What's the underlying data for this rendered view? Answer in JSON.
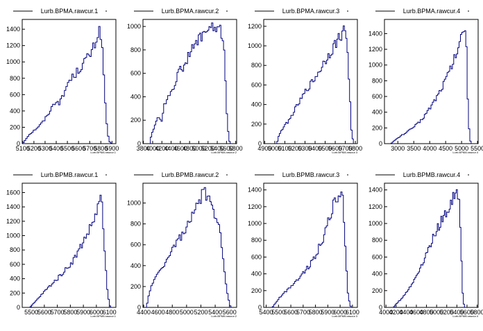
{
  "style": {
    "background": "#ffffff",
    "line_color": "#000080",
    "frame_color": "#000000"
  },
  "chart_data": [
    {
      "type": "histogram",
      "title": "Lurb.BPMA.rawcur.1",
      "xlabel": "Lurb.BPMA.rawcur.1",
      "x_range": [
        5095,
        5935
      ],
      "x_ticks": [
        5100,
        5200,
        5300,
        5400,
        5500,
        5600,
        5700,
        5800,
        5900
      ],
      "x_tick_labels": [
        "5100",
        "5200",
        "5300",
        "5400",
        "5500",
        "5600",
        "5700",
        "5800",
        "5900"
      ],
      "ylim": [
        0,
        1520
      ],
      "y_ticks": [
        0,
        200,
        400,
        600,
        800,
        1000,
        1200,
        1400
      ],
      "points": [
        [
          5100,
          0
        ],
        [
          5120,
          40
        ],
        [
          5150,
          100
        ],
        [
          5200,
          160
        ],
        [
          5250,
          220
        ],
        [
          5300,
          300
        ],
        [
          5350,
          420
        ],
        [
          5400,
          530
        ],
        [
          5430,
          500
        ],
        [
          5470,
          600
        ],
        [
          5500,
          740
        ],
        [
          5550,
          820
        ],
        [
          5600,
          900
        ],
        [
          5650,
          1000
        ],
        [
          5700,
          1080
        ],
        [
          5730,
          1150
        ],
        [
          5760,
          1280
        ],
        [
          5790,
          1400
        ],
        [
          5800,
          1350
        ],
        [
          5820,
          1000
        ],
        [
          5840,
          500
        ],
        [
          5860,
          120
        ],
        [
          5880,
          20
        ],
        [
          5900,
          0
        ]
      ]
    },
    {
      "type": "histogram",
      "title": "Lurb.BPMA.rawcur.2",
      "xlabel": "Lurb.BPMA.rawcur.2",
      "x_range": [
        3790,
        5820
      ],
      "x_ticks": [
        3800,
        4000,
        4200,
        4400,
        4600,
        4800,
        5000,
        5200,
        5400,
        5600,
        5800
      ],
      "x_tick_labels": [
        "3800",
        "4000",
        "4200",
        "4400",
        "4600",
        "4800",
        "5000",
        "5200",
        "5400",
        "5600",
        "5800"
      ],
      "ylim": [
        0,
        1060
      ],
      "y_ticks": [
        0,
        200,
        400,
        600,
        800,
        1000
      ],
      "points": [
        [
          3950,
          0
        ],
        [
          3970,
          80
        ],
        [
          4050,
          150
        ],
        [
          4100,
          230
        ],
        [
          4200,
          200
        ],
        [
          4250,
          320
        ],
        [
          4350,
          420
        ],
        [
          4450,
          480
        ],
        [
          4550,
          600
        ],
        [
          4650,
          650
        ],
        [
          4750,
          720
        ],
        [
          4850,
          800
        ],
        [
          4950,
          860
        ],
        [
          5050,
          920
        ],
        [
          5150,
          960
        ],
        [
          5250,
          980
        ],
        [
          5350,
          990
        ],
        [
          5450,
          970
        ],
        [
          5500,
          930
        ],
        [
          5560,
          780
        ],
        [
          5600,
          300
        ],
        [
          5650,
          40
        ],
        [
          5680,
          0
        ]
      ]
    },
    {
      "type": "histogram",
      "title": "Lurb.BPMA.rawcur.3",
      "xlabel": "Lurb.BPMA.rawcur.3",
      "x_range": [
        4890,
        5820
      ],
      "x_ticks": [
        4900,
        5000,
        5100,
        5200,
        5300,
        5400,
        5500,
        5600,
        5700,
        5800
      ],
      "x_tick_labels": [
        "4900",
        "5000",
        "5100",
        "5200",
        "5300",
        "5400",
        "5500",
        "5600",
        "5700",
        "5800"
      ],
      "ylim": [
        0,
        1270
      ],
      "y_ticks": [
        0,
        200,
        400,
        600,
        800,
        1000,
        1200
      ],
      "points": [
        [
          5020,
          0
        ],
        [
          5040,
          80
        ],
        [
          5080,
          160
        ],
        [
          5150,
          250
        ],
        [
          5200,
          350
        ],
        [
          5260,
          450
        ],
        [
          5320,
          560
        ],
        [
          5380,
          640
        ],
        [
          5440,
          740
        ],
        [
          5500,
          850
        ],
        [
          5560,
          950
        ],
        [
          5620,
          1050
        ],
        [
          5660,
          1120
        ],
        [
          5700,
          1170
        ],
        [
          5720,
          1000
        ],
        [
          5740,
          600
        ],
        [
          5760,
          150
        ],
        [
          5780,
          0
        ]
      ]
    },
    {
      "type": "histogram",
      "title": "Lurb.BPMA.rawcur.4",
      "xlabel": "Lurb.BPMA.rawcur.4",
      "x_range": [
        2580,
        5520
      ],
      "x_ticks": [
        3000,
        3500,
        4000,
        4500,
        5000,
        5500
      ],
      "x_tick_labels": [
        "3000",
        "3500",
        "4000",
        "4500",
        "5000",
        "5500"
      ],
      "ylim": [
        0,
        1580
      ],
      "y_ticks": [
        0,
        200,
        400,
        600,
        800,
        1000,
        1200,
        1400
      ],
      "points": [
        [
          2780,
          0
        ],
        [
          2900,
          40
        ],
        [
          3100,
          100
        ],
        [
          3400,
          180
        ],
        [
          3700,
          280
        ],
        [
          4000,
          450
        ],
        [
          4300,
          650
        ],
        [
          4600,
          900
        ],
        [
          4800,
          1100
        ],
        [
          4950,
          1300
        ],
        [
          5050,
          1420
        ],
        [
          5100,
          1480
        ],
        [
          5150,
          1350
        ],
        [
          5200,
          500
        ],
        [
          5250,
          80
        ],
        [
          5300,
          0
        ]
      ]
    },
    {
      "type": "histogram",
      "title": "Lurb.BPMB.rawcur.1",
      "xlabel": "Lurb.BPMB.rawcur.1",
      "x_range": [
        5430,
        6150
      ],
      "x_ticks": [
        5500,
        5600,
        5700,
        5800,
        5900,
        6000,
        6100
      ],
      "x_tick_labels": [
        "5500",
        "5600",
        "5700",
        "5800",
        "5900",
        "6000",
        "6100"
      ],
      "ylim": [
        0,
        1730
      ],
      "y_ticks": [
        0,
        200,
        400,
        600,
        800,
        1000,
        1200,
        1400,
        1600
      ],
      "points": [
        [
          5490,
          0
        ],
        [
          5510,
          40
        ],
        [
          5540,
          100
        ],
        [
          5580,
          180
        ],
        [
          5620,
          260
        ],
        [
          5660,
          330
        ],
        [
          5700,
          400
        ],
        [
          5740,
          480
        ],
        [
          5780,
          560
        ],
        [
          5820,
          650
        ],
        [
          5860,
          780
        ],
        [
          5900,
          920
        ],
        [
          5940,
          1060
        ],
        [
          5980,
          1220
        ],
        [
          6010,
          1380
        ],
        [
          6030,
          1550
        ],
        [
          6045,
          1380
        ],
        [
          6060,
          900
        ],
        [
          6080,
          300
        ],
        [
          6100,
          40
        ],
        [
          6110,
          0
        ]
      ]
    },
    {
      "type": "histogram",
      "title": "Lurb.BPMB.rawcur.2",
      "xlabel": "Lurb.BPMB.rawcur.2",
      "x_range": [
        4390,
        5700
      ],
      "x_ticks": [
        4400,
        4600,
        4800,
        5000,
        5200,
        5400,
        5600
      ],
      "x_tick_labels": [
        "4400",
        "4600",
        "4800",
        "5000",
        "5200",
        "5400",
        "5600"
      ],
      "ylim": [
        0,
        1190
      ],
      "y_ticks": [
        0,
        200,
        400,
        600,
        800,
        1000
      ],
      "points": [
        [
          4440,
          0
        ],
        [
          4460,
          80
        ],
        [
          4500,
          200
        ],
        [
          4550,
          260
        ],
        [
          4600,
          320
        ],
        [
          4650,
          380
        ],
        [
          4700,
          430
        ],
        [
          4750,
          480
        ],
        [
          4800,
          560
        ],
        [
          4850,
          620
        ],
        [
          4900,
          660
        ],
        [
          4950,
          700
        ],
        [
          5000,
          760
        ],
        [
          5050,
          820
        ],
        [
          5100,
          900
        ],
        [
          5150,
          980
        ],
        [
          5200,
          1060
        ],
        [
          5250,
          1100
        ],
        [
          5300,
          1030
        ],
        [
          5350,
          960
        ],
        [
          5400,
          900
        ],
        [
          5450,
          820
        ],
        [
          5500,
          560
        ],
        [
          5550,
          220
        ],
        [
          5600,
          30
        ],
        [
          5620,
          0
        ]
      ]
    },
    {
      "type": "histogram",
      "title": "Lurb.BPMB.rawcur.3",
      "xlabel": "Lurb.BPMB.rawcur.3",
      "x_range": [
        5380,
        6140
      ],
      "x_ticks": [
        5400,
        5500,
        5600,
        5700,
        5800,
        5900,
        6000,
        6100
      ],
      "x_tick_labels": [
        "5400",
        "5500",
        "5600",
        "5700",
        "5800",
        "5900",
        "6000",
        "6100"
      ],
      "ylim": [
        0,
        1480
      ],
      "y_ticks": [
        0,
        200,
        400,
        600,
        800,
        1000,
        1200,
        1400
      ],
      "points": [
        [
          5450,
          0
        ],
        [
          5470,
          40
        ],
        [
          5500,
          100
        ],
        [
          5550,
          180
        ],
        [
          5600,
          250
        ],
        [
          5650,
          330
        ],
        [
          5700,
          410
        ],
        [
          5750,
          500
        ],
        [
          5800,
          620
        ],
        [
          5850,
          780
        ],
        [
          5880,
          900
        ],
        [
          5910,
          1050
        ],
        [
          5940,
          1200
        ],
        [
          5970,
          1280
        ],
        [
          6000,
          1350
        ],
        [
          6020,
          1380
        ],
        [
          6040,
          800
        ],
        [
          6060,
          200
        ],
        [
          6080,
          30
        ],
        [
          6090,
          0
        ]
      ]
    },
    {
      "type": "histogram",
      "title": "Lurb.BPMB.rawcur.4",
      "xlabel": "Lurb.BPMB.rawcur.4",
      "x_range": [
        3970,
        5820
      ],
      "x_ticks": [
        4000,
        4200,
        4400,
        4600,
        4800,
        5000,
        5200,
        5400,
        5600,
        5800
      ],
      "x_tick_labels": [
        "4000",
        "4200",
        "4400",
        "4600",
        "4800",
        "5000",
        "5200",
        "5400",
        "5600",
        "5800"
      ],
      "ylim": [
        0,
        1480
      ],
      "y_ticks": [
        0,
        200,
        400,
        600,
        800,
        1000,
        1200,
        1400
      ],
      "points": [
        [
          4150,
          0
        ],
        [
          4200,
          40
        ],
        [
          4300,
          100
        ],
        [
          4400,
          180
        ],
        [
          4500,
          260
        ],
        [
          4600,
          380
        ],
        [
          4700,
          500
        ],
        [
          4800,
          640
        ],
        [
          4900,
          780
        ],
        [
          5000,
          920
        ],
        [
          5100,
          1040
        ],
        [
          5200,
          1140
        ],
        [
          5300,
          1260
        ],
        [
          5350,
          1340
        ],
        [
          5400,
          1390
        ],
        [
          5450,
          1300
        ],
        [
          5480,
          700
        ],
        [
          5520,
          100
        ],
        [
          5550,
          0
        ]
      ]
    }
  ]
}
